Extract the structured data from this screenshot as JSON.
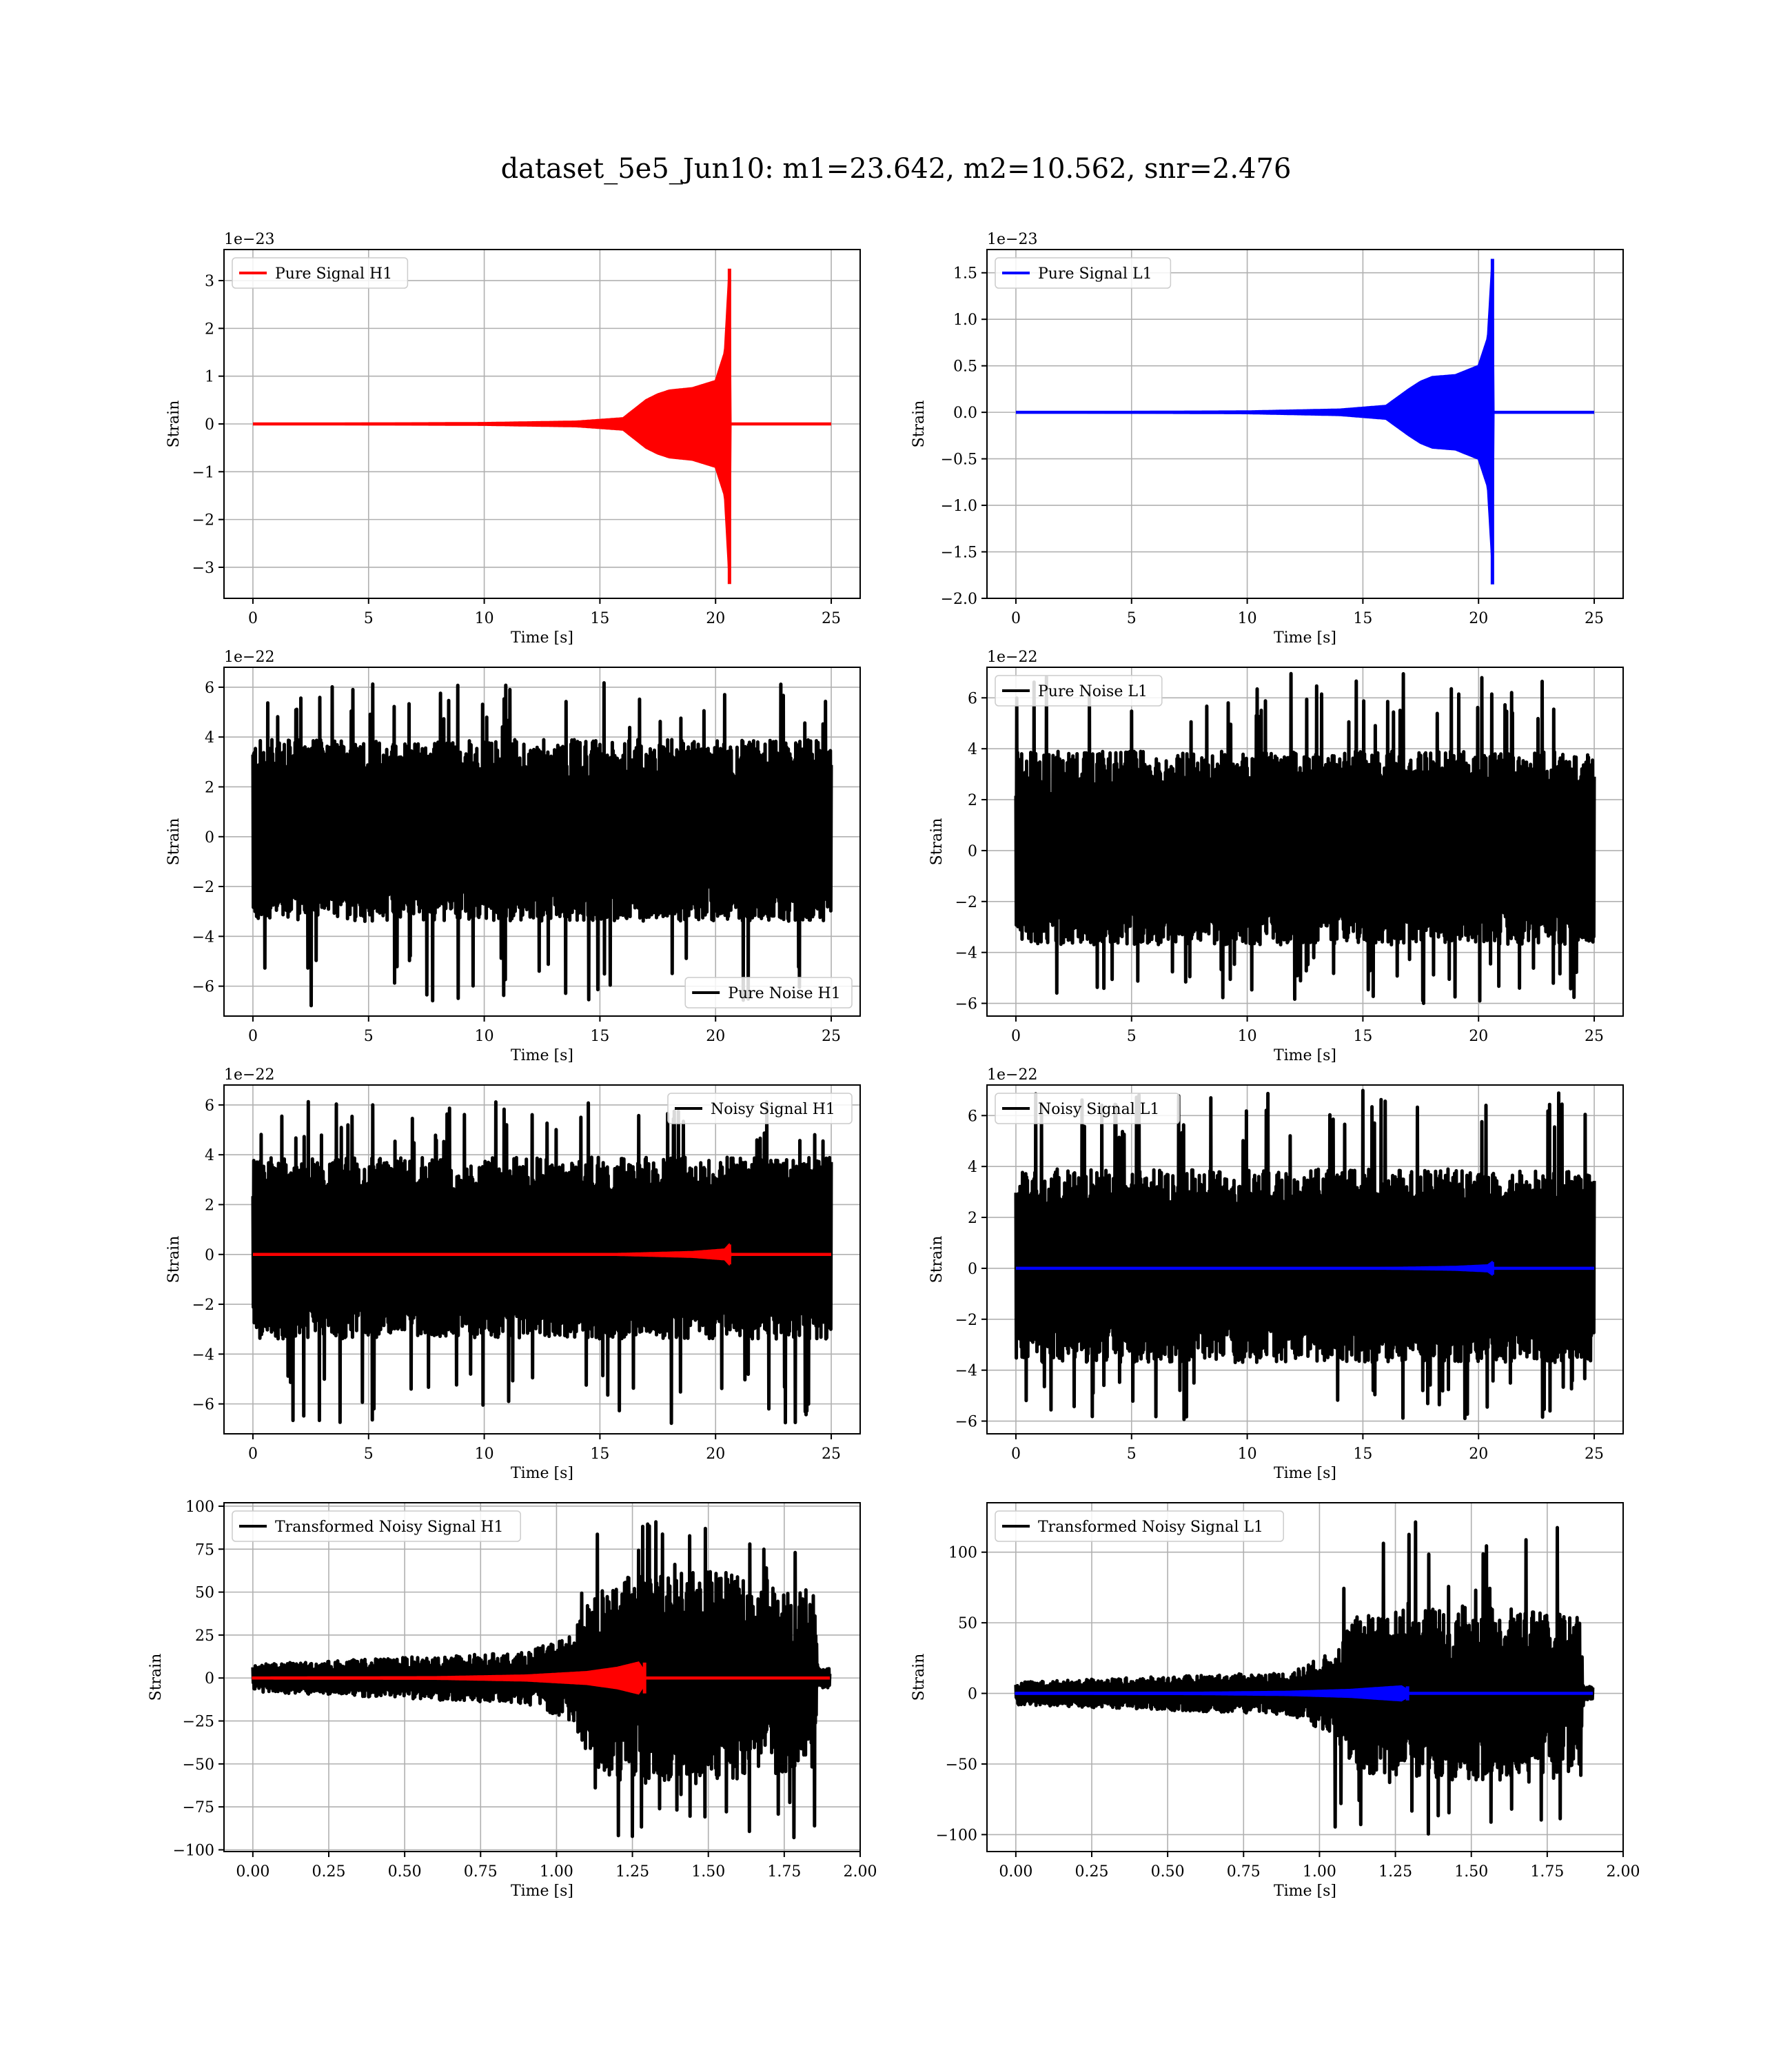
{
  "figure": {
    "title": "dataset_5e5_Jun10: m1=23.642, m2=10.562, snr=2.476"
  },
  "chart_data": [
    {
      "id": "h1-pure-signal",
      "type": "line",
      "column": "left",
      "row": 0,
      "xlabel": "Time [s]",
      "ylabel": "Strain",
      "scale_label": "1e−23",
      "xlim": [
        -1.25,
        26.25
      ],
      "ylim": [
        -3.65,
        3.65
      ],
      "xticks": [
        0,
        5,
        10,
        15,
        20,
        25
      ],
      "xtick_labels": [
        "0",
        "5",
        "10",
        "15",
        "20",
        "25"
      ],
      "yticks": [
        -3,
        -2,
        -1,
        0,
        1,
        2,
        3
      ],
      "ytick_labels": [
        "−3",
        "−2",
        "−1",
        "0",
        "1",
        "2",
        "3"
      ],
      "grid": true,
      "legend": {
        "position": "top-left",
        "entries": [
          {
            "label": "Pure Signal H1",
            "color": "#ff0000"
          }
        ]
      },
      "series": [
        {
          "name": "Pure Signal H1",
          "color": "#ff0000",
          "kind": "chirp",
          "x_start": 0,
          "x_end": 25,
          "envelope": [
            [
              0,
              0
            ],
            [
              10,
              0.02
            ],
            [
              14,
              0.05
            ],
            [
              16,
              0.12
            ],
            [
              17,
              0.5
            ],
            [
              17.5,
              0.62
            ],
            [
              18,
              0.7
            ],
            [
              19,
              0.75
            ],
            [
              20,
              0.9
            ],
            [
              20.4,
              1.5
            ],
            [
              20.6,
              3.25
            ],
            [
              20.65,
              0
            ]
          ],
          "merger_peak": 3.25,
          "merger_trough": -3.35
        }
      ]
    },
    {
      "id": "l1-pure-signal",
      "type": "line",
      "column": "right",
      "row": 0,
      "xlabel": "Time [s]",
      "ylabel": "Strain",
      "scale_label": "1e−23",
      "xlim": [
        -1.25,
        26.25
      ],
      "ylim": [
        -2.0,
        1.75
      ],
      "xticks": [
        0,
        5,
        10,
        15,
        20,
        25
      ],
      "xtick_labels": [
        "0",
        "5",
        "10",
        "15",
        "20",
        "25"
      ],
      "yticks": [
        -2.0,
        -1.5,
        -1.0,
        -0.5,
        0.0,
        0.5,
        1.0,
        1.5
      ],
      "ytick_labels": [
        "−2.0",
        "−1.5",
        "−1.0",
        "−0.5",
        "0.0",
        "0.5",
        "1.0",
        "1.5"
      ],
      "grid": true,
      "legend": {
        "position": "top-left",
        "entries": [
          {
            "label": "Pure Signal L1",
            "color": "#0000ff"
          }
        ]
      },
      "series": [
        {
          "name": "Pure Signal L1",
          "color": "#0000ff",
          "kind": "chirp",
          "x_start": 0,
          "x_end": 25,
          "envelope": [
            [
              0,
              0
            ],
            [
              10,
              0.01
            ],
            [
              14,
              0.03
            ],
            [
              16,
              0.07
            ],
            [
              17,
              0.25
            ],
            [
              17.5,
              0.33
            ],
            [
              18,
              0.38
            ],
            [
              19,
              0.4
            ],
            [
              20,
              0.5
            ],
            [
              20.4,
              0.8
            ],
            [
              20.6,
              1.65
            ],
            [
              20.65,
              0
            ]
          ],
          "merger_peak": 1.65,
          "merger_trough": -1.85
        }
      ]
    },
    {
      "id": "h1-pure-noise",
      "type": "line",
      "column": "left",
      "row": 1,
      "xlabel": "Time [s]",
      "ylabel": "Strain",
      "scale_label": "1e−22",
      "xlim": [
        -1.25,
        26.25
      ],
      "ylim": [
        -7.2,
        6.8
      ],
      "xticks": [
        0,
        5,
        10,
        15,
        20,
        25
      ],
      "xtick_labels": [
        "0",
        "5",
        "10",
        "15",
        "20",
        "25"
      ],
      "yticks": [
        -6,
        -4,
        -2,
        0,
        2,
        4,
        6
      ],
      "ytick_labels": [
        "−6",
        "−4",
        "−2",
        "0",
        "2",
        "4",
        "6"
      ],
      "grid": true,
      "legend": {
        "position": "bottom-right",
        "entries": [
          {
            "label": "Pure Noise H1",
            "color": "#000000"
          }
        ]
      },
      "series": [
        {
          "name": "Pure Noise H1",
          "color": "#000000",
          "kind": "noise",
          "x_start": 0,
          "x_end": 25,
          "band": [
            -3.4,
            3.9
          ],
          "max": 6.2,
          "min": -6.8
        }
      ]
    },
    {
      "id": "l1-pure-noise",
      "type": "line",
      "column": "right",
      "row": 1,
      "xlabel": "Time [s]",
      "ylabel": "Strain",
      "scale_label": "1e−22",
      "xlim": [
        -1.25,
        26.25
      ],
      "ylim": [
        -6.5,
        7.2
      ],
      "xticks": [
        0,
        5,
        10,
        15,
        20,
        25
      ],
      "xtick_labels": [
        "0",
        "5",
        "10",
        "15",
        "20",
        "25"
      ],
      "yticks": [
        -6,
        -4,
        -2,
        0,
        2,
        4,
        6
      ],
      "ytick_labels": [
        "−6",
        "−4",
        "−2",
        "0",
        "2",
        "4",
        "6"
      ],
      "grid": true,
      "legend": {
        "position": "top-left",
        "entries": [
          {
            "label": "Pure Noise L1",
            "color": "#000000"
          }
        ]
      },
      "series": [
        {
          "name": "Pure Noise L1",
          "color": "#000000",
          "kind": "noise",
          "x_start": 0,
          "x_end": 25,
          "band": [
            -3.7,
            3.9
          ],
          "max": 7.0,
          "min": -6.0
        }
      ]
    },
    {
      "id": "h1-noisy-signal",
      "type": "line",
      "column": "left",
      "row": 2,
      "xlabel": "Time [s]",
      "ylabel": "Strain",
      "scale_label": "1e−22",
      "xlim": [
        -1.25,
        26.25
      ],
      "ylim": [
        -7.2,
        6.8
      ],
      "xticks": [
        0,
        5,
        10,
        15,
        20,
        25
      ],
      "xtick_labels": [
        "0",
        "5",
        "10",
        "15",
        "20",
        "25"
      ],
      "yticks": [
        -6,
        -4,
        -2,
        0,
        2,
        4,
        6
      ],
      "ytick_labels": [
        "−6",
        "−4",
        "−2",
        "0",
        "2",
        "4",
        "6"
      ],
      "grid": true,
      "legend": {
        "position": "top-right",
        "entries": [
          {
            "label": "Noisy Signal H1",
            "color": "#000000"
          }
        ]
      },
      "series": [
        {
          "name": "Noisy Signal H1",
          "color": "#000000",
          "kind": "noise",
          "x_start": 0,
          "x_end": 25,
          "band": [
            -3.4,
            3.9
          ],
          "max": 6.2,
          "min": -6.8
        },
        {
          "color": "#ff0000",
          "kind": "chirp",
          "x_start": 0,
          "x_end": 25,
          "envelope": [
            [
              0,
              0
            ],
            [
              15,
              0.005
            ],
            [
              17,
              0.05
            ],
            [
              19,
              0.1
            ],
            [
              20.4,
              0.2
            ],
            [
              20.6,
              0.4
            ],
            [
              20.65,
              0
            ]
          ],
          "merger_peak": 0.4,
          "merger_trough": -0.4
        }
      ]
    },
    {
      "id": "l1-noisy-signal",
      "type": "line",
      "column": "right",
      "row": 2,
      "xlabel": "Time [s]",
      "ylabel": "Strain",
      "scale_label": "1e−22",
      "xlim": [
        -1.25,
        26.25
      ],
      "ylim": [
        -6.5,
        7.2
      ],
      "xticks": [
        0,
        5,
        10,
        15,
        20,
        25
      ],
      "xtick_labels": [
        "0",
        "5",
        "10",
        "15",
        "20",
        "25"
      ],
      "yticks": [
        -6,
        -4,
        -2,
        0,
        2,
        4,
        6
      ],
      "ytick_labels": [
        "−6",
        "−4",
        "−2",
        "0",
        "2",
        "4",
        "6"
      ],
      "grid": true,
      "legend": {
        "position": "top-left",
        "entries": [
          {
            "label": "Noisy Signal L1",
            "color": "#000000"
          }
        ]
      },
      "series": [
        {
          "name": "Noisy Signal L1",
          "color": "#000000",
          "kind": "noise",
          "x_start": 0,
          "x_end": 25,
          "band": [
            -3.7,
            3.9
          ],
          "max": 7.0,
          "min": -6.0
        },
        {
          "color": "#0000ff",
          "kind": "chirp",
          "x_start": 0,
          "x_end": 25,
          "envelope": [
            [
              0,
              0
            ],
            [
              15,
              0.003
            ],
            [
              17,
              0.03
            ],
            [
              19,
              0.06
            ],
            [
              20.4,
              0.12
            ],
            [
              20.6,
              0.25
            ],
            [
              20.65,
              0
            ]
          ],
          "merger_peak": 0.25,
          "merger_trough": -0.25
        }
      ]
    },
    {
      "id": "h1-transformed",
      "type": "line",
      "column": "left",
      "row": 3,
      "xlabel": "Time [s]",
      "ylabel": "Strain",
      "scale_label": "",
      "xlim": [
        -0.095,
        2.0
      ],
      "ylim": [
        -101,
        102
      ],
      "xticks": [
        0.0,
        0.25,
        0.5,
        0.75,
        1.0,
        1.25,
        1.5,
        1.75,
        2.0
      ],
      "xtick_labels": [
        "0.00",
        "0.25",
        "0.50",
        "0.75",
        "1.00",
        "1.25",
        "1.50",
        "1.75",
        "2.00"
      ],
      "yticks": [
        -100,
        -75,
        -50,
        -25,
        0,
        25,
        50,
        75,
        100
      ],
      "ytick_labels": [
        "−100",
        "−75",
        "−50",
        "−25",
        "0",
        "25",
        "50",
        "75",
        "100"
      ],
      "grid": true,
      "legend": {
        "position": "top-left",
        "entries": [
          {
            "label": "Transformed Noisy Signal H1",
            "color": "#000000"
          }
        ]
      },
      "series": [
        {
          "name": "Transformed Noisy Signal H1",
          "color": "#000000",
          "kind": "noise-envelope",
          "x_start": 0,
          "x_end": 1.9,
          "envelope": [
            [
              0,
              8
            ],
            [
              0.5,
              12
            ],
            [
              0.9,
              15
            ],
            [
              1.05,
              25
            ],
            [
              1.12,
              50
            ],
            [
              1.2,
              60
            ],
            [
              1.5,
              62
            ],
            [
              1.75,
              55
            ],
            [
              1.85,
              50
            ],
            [
              1.86,
              6
            ],
            [
              1.9,
              6
            ]
          ],
          "max": 93,
          "min": -93
        },
        {
          "color": "#ff0000",
          "kind": "chirp",
          "x_start": 0,
          "x_end": 1.9,
          "envelope": [
            [
              0,
              0.3
            ],
            [
              0.6,
              0.5
            ],
            [
              0.9,
              1.5
            ],
            [
              1.1,
              3.5
            ],
            [
              1.2,
              6
            ],
            [
              1.27,
              9
            ],
            [
              1.285,
              5
            ],
            [
              1.29,
              0
            ],
            [
              1.9,
              0
            ]
          ],
          "merger_peak": 9,
          "merger_trough": -9
        }
      ]
    },
    {
      "id": "l1-transformed",
      "type": "line",
      "column": "right",
      "row": 3,
      "xlabel": "Time [s]",
      "ylabel": "Strain",
      "scale_label": "",
      "xlim": [
        -0.095,
        2.0
      ],
      "ylim": [
        -112,
        135
      ],
      "xticks": [
        0.0,
        0.25,
        0.5,
        0.75,
        1.0,
        1.25,
        1.5,
        1.75,
        2.0
      ],
      "xtick_labels": [
        "0.00",
        "0.25",
        "0.50",
        "0.75",
        "1.00",
        "1.25",
        "1.50",
        "1.75",
        "2.00"
      ],
      "yticks": [
        -100,
        -50,
        0,
        50,
        100
      ],
      "ytick_labels": [
        "−100",
        "−50",
        "0",
        "50",
        "100"
      ],
      "grid": true,
      "legend": {
        "position": "top-left",
        "entries": [
          {
            "label": "Transformed Noisy Signal L1",
            "color": "#000000"
          }
        ]
      },
      "series": [
        {
          "name": "Transformed Noisy Signal L1",
          "color": "#000000",
          "kind": "noise-envelope",
          "x_start": 0,
          "x_end": 1.9,
          "envelope": [
            [
              0,
              8
            ],
            [
              0.5,
              12
            ],
            [
              0.9,
              15
            ],
            [
              1.05,
              30
            ],
            [
              1.12,
              55
            ],
            [
              1.2,
              60
            ],
            [
              1.5,
              62
            ],
            [
              1.75,
              58
            ],
            [
              1.86,
              55
            ],
            [
              1.87,
              5
            ],
            [
              1.9,
              5
            ]
          ],
          "max": 125,
          "min": -105
        },
        {
          "color": "#0000ff",
          "kind": "chirp",
          "x_start": 0,
          "x_end": 1.9,
          "envelope": [
            [
              0,
              0.3
            ],
            [
              0.6,
              0.5
            ],
            [
              0.9,
              1.2
            ],
            [
              1.1,
              2.5
            ],
            [
              1.2,
              4
            ],
            [
              1.27,
              5
            ],
            [
              1.285,
              3
            ],
            [
              1.29,
              0
            ],
            [
              1.9,
              0
            ]
          ],
          "merger_peak": 5,
          "merger_trough": -5
        }
      ]
    }
  ]
}
